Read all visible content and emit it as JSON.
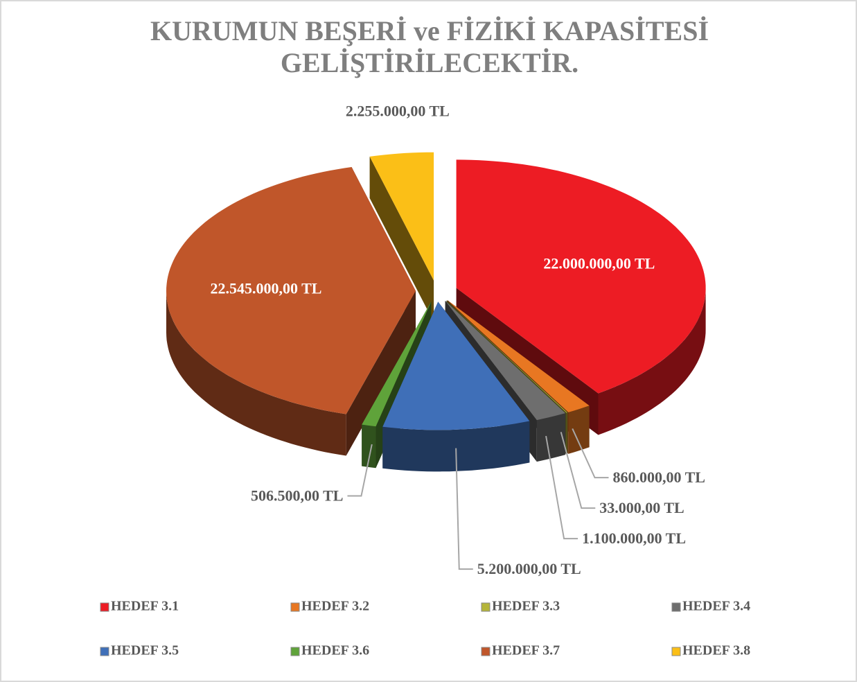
{
  "chart_data": {
    "type": "pie3d",
    "title": [
      "KURUMUN BEŞERİ ve FİZİKİ KAPASİTESİ",
      "GELİŞTİRİLECEKTİR."
    ],
    "categories": [
      "HEDEF 3.1",
      "HEDEF 3.2",
      "HEDEF 3.3",
      "HEDEF 3.4",
      "HEDEF 3.5",
      "HEDEF 3.6",
      "HEDEF 3.7",
      "HEDEF 3.8"
    ],
    "values": [
      22000000,
      860000,
      33000,
      1100000,
      5200000,
      506500,
      22545000,
      2255000
    ],
    "value_labels": [
      "22.000.000,00 TL",
      "860.000,00 TL",
      "33.000,00 TL",
      "1.100.000,00 TL",
      "5.200.000,00 TL",
      "506.500,00 TL",
      "22.545.000,00 TL",
      "2.255.000,00 TL"
    ],
    "colors": [
      "#ed1c24",
      "#e87722",
      "#b5b53a",
      "#6e6e6e",
      "#3f6fb8",
      "#5fa33a",
      "#c0562a",
      "#fbbf17"
    ],
    "legend": "bottom"
  }
}
